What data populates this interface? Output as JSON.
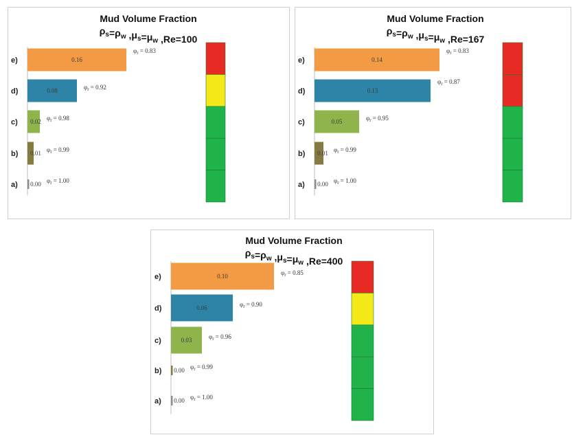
{
  "chart_data": [
    {
      "type": "bar",
      "title": "Mud Volume Fraction",
      "subtitle": "ρs=ρw ,μs=μw ,Re=100",
      "categories": [
        "a)",
        "b)",
        "c)",
        "d)",
        "e)"
      ],
      "values": [
        0.0,
        0.01,
        0.02,
        0.08,
        0.16
      ],
      "value_labels": [
        "0.00",
        "0.01",
        "0.02",
        "0.08",
        "0.16"
      ],
      "phi_labels": [
        "φ_r = 1.00",
        "φ_r = 0.99",
        "φ_r = 0.98",
        "φ_r = 0.92",
        "φ_r = 0.83"
      ],
      "bar_colors": [
        "#8c8c8c",
        "#857a3f",
        "#8fb44c",
        "#2e84a6",
        "#f39a44"
      ],
      "indicator_colors": [
        "#e82a24",
        "#f4e819",
        "#1fb34a",
        "#1fb34a",
        "#1fb34a"
      ]
    },
    {
      "type": "bar",
      "title": "Mud Volume Fraction",
      "subtitle": "ρs=ρw ,μs=μw ,Re=167",
      "categories": [
        "a)",
        "b)",
        "c)",
        "d)",
        "e)"
      ],
      "values": [
        0.0,
        0.01,
        0.05,
        0.13,
        0.14
      ],
      "value_labels": [
        "0.00",
        "0.01",
        "0.05",
        "0.13",
        "0.14"
      ],
      "phi_labels": [
        "φ_r = 1.00",
        "φ_r = 0.99",
        "φ_r = 0.95",
        "φ_r = 0.87",
        "φ_r = 0.83"
      ],
      "bar_colors": [
        "#8c8c8c",
        "#857a3f",
        "#8fb44c",
        "#2e84a6",
        "#f39a44"
      ],
      "indicator_colors": [
        "#e82a24",
        "#e82a24",
        "#1fb34a",
        "#1fb34a",
        "#1fb34a"
      ]
    },
    {
      "type": "bar",
      "title": "Mud Volume Fraction",
      "subtitle": "ρs=ρw ,μs=μw ,Re=400",
      "categories": [
        "a)",
        "b)",
        "c)",
        "d)",
        "e)"
      ],
      "values": [
        0.0,
        0.0,
        0.03,
        0.06,
        0.1
      ],
      "value_labels": [
        "0.00",
        "0.00",
        "0.03",
        "0.06",
        "0.10"
      ],
      "phi_labels": [
        "φ_r = 1.00",
        "φ_r = 0.99",
        "φ_r = 0.96",
        "φ_r = 0.90",
        "φ_r = 0.85"
      ],
      "bar_colors": [
        "#8c8c8c",
        "#857a3f",
        "#8fb44c",
        "#2e84a6",
        "#f39a44"
      ],
      "indicator_colors": [
        "#e82a24",
        "#f4e819",
        "#1fb34a",
        "#1fb34a",
        "#1fb34a"
      ]
    }
  ]
}
